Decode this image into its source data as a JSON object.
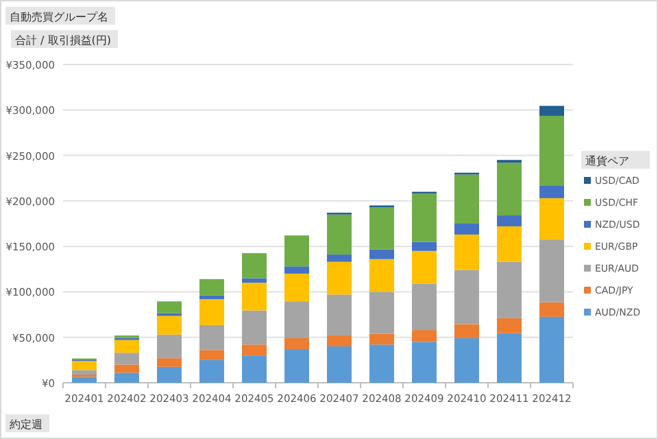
{
  "chart_data": {
    "type": "bar",
    "stacked": true,
    "categories": [
      "202401",
      "202402",
      "202403",
      "202404",
      "202405",
      "202406",
      "202407",
      "202408",
      "202409",
      "202410",
      "202411",
      "202412"
    ],
    "series": [
      {
        "name": "AUD/NZD",
        "color": "#5b9bd5",
        "values": [
          6500,
          11000,
          17500,
          25000,
          30000,
          37000,
          40000,
          42000,
          45000,
          49000,
          54500,
          72500
        ]
      },
      {
        "name": "CAD/JPY",
        "color": "#ed7d31",
        "values": [
          2500,
          9000,
          9500,
          11000,
          12000,
          12000,
          12000,
          12000,
          13000,
          15500,
          16500,
          16000
        ]
      },
      {
        "name": "EUR/AUD",
        "color": "#a5a5a5",
        "values": [
          5000,
          13000,
          26000,
          27500,
          37500,
          40600,
          45000,
          46000,
          51000,
          59500,
          62000,
          69000
        ]
      },
      {
        "name": "EUR/GBP",
        "color": "#ffc000",
        "values": [
          10000,
          14000,
          20500,
          28500,
          30500,
          30400,
          36000,
          36000,
          36000,
          39000,
          39000,
          45500
        ]
      },
      {
        "name": "NZD/USD",
        "color": "#4472c4",
        "values": [
          1500,
          2300,
          3000,
          4000,
          5000,
          8000,
          8000,
          10500,
          10000,
          12000,
          12000,
          13500
        ]
      },
      {
        "name": "USD/CHF",
        "color": "#70ad47",
        "values": [
          1200,
          2700,
          13000,
          18000,
          27500,
          34000,
          44000,
          46500,
          53000,
          54000,
          58000,
          77000
        ]
      },
      {
        "name": "USD/CAD",
        "color": "#255e91",
        "values": [
          null,
          null,
          null,
          null,
          null,
          null,
          2000,
          2000,
          2000,
          2000,
          3000,
          11000
        ]
      }
    ],
    "ylim": [
      0,
      350000
    ],
    "yticks": [
      {
        "value": 0,
        "label": "¥0"
      },
      {
        "value": 50000,
        "label": "¥50,000"
      },
      {
        "value": 100000,
        "label": "¥100,000"
      },
      {
        "value": 150000,
        "label": "¥150,000"
      },
      {
        "value": 200000,
        "label": "¥200,000"
      },
      {
        "value": 250000,
        "label": "¥250,000"
      },
      {
        "value": 300000,
        "label": "¥300,000"
      },
      {
        "value": 350000,
        "label": "¥350,000"
      }
    ],
    "grid": "y",
    "legend": "right",
    "legend_title": "通貨ペア",
    "annotations": [
      "自動売買グループ名",
      "合計 / 取引損益(円)",
      "約定週"
    ]
  }
}
